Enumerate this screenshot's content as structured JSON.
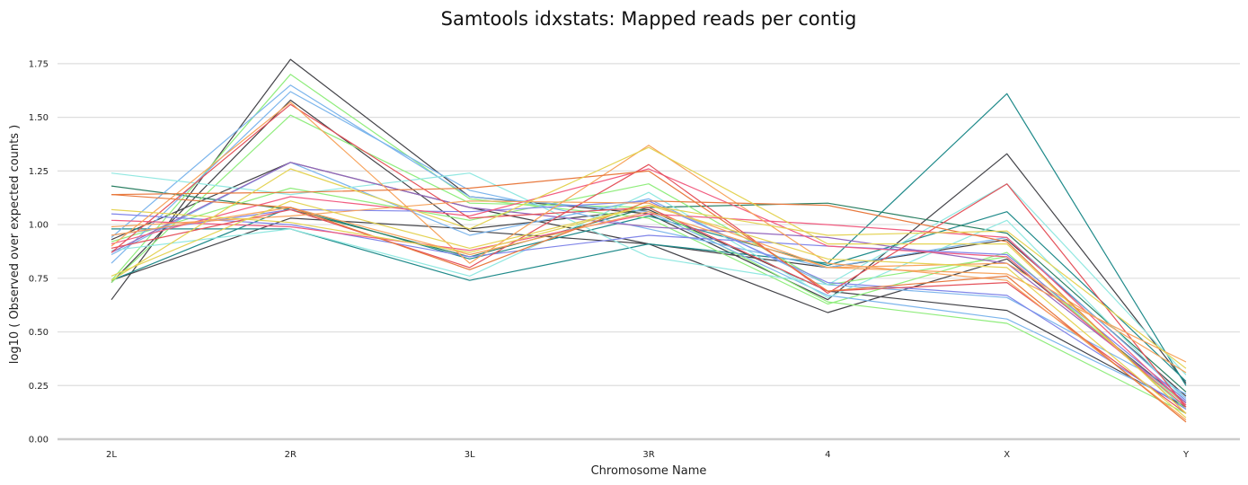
{
  "chart_data": {
    "type": "line",
    "title": "Samtools idxstats: Mapped reads per contig",
    "xlabel": "Chromosome Name",
    "ylabel": "log10 ( Observed over expected counts )",
    "categories": [
      "2L",
      "2R",
      "3L",
      "3R",
      "4",
      "X",
      "Y"
    ],
    "ylim": [
      0,
      1.85
    ],
    "yticks": [
      "0.00",
      "0.25",
      "0.50",
      "0.75",
      "1.00",
      "1.25",
      "1.50",
      "1.75"
    ],
    "grid": true,
    "series": [
      {
        "color": "#434348",
        "values": [
          0.65,
          1.77,
          1.13,
          1.05,
          0.65,
          1.33,
          0.26
        ]
      },
      {
        "color": "#434348",
        "values": [
          0.73,
          1.58,
          0.97,
          0.91,
          0.59,
          0.84,
          0.17
        ]
      },
      {
        "color": "#434348",
        "values": [
          0.74,
          1.03,
          0.98,
          1.07,
          0.69,
          0.6,
          0.15
        ]
      },
      {
        "color": "#434348",
        "values": [
          0.93,
          1.29,
          1.08,
          0.91,
          0.8,
          0.93,
          0.2
        ]
      },
      {
        "color": "#1f8a8a",
        "values": [
          0.98,
          0.98,
          0.74,
          0.91,
          0.82,
          1.61,
          0.25
        ]
      },
      {
        "color": "#1f8a8a",
        "values": [
          0.74,
          1.08,
          0.84,
          1.04,
          0.81,
          1.06,
          0.27
        ]
      },
      {
        "color": "#2a7f62",
        "values": [
          1.18,
          1.07,
          0.85,
          1.08,
          1.1,
          0.96,
          0.22
        ]
      },
      {
        "color": "#90ed7d",
        "values": [
          0.74,
          1.7,
          1.12,
          1.03,
          0.63,
          0.87,
          0.14
        ]
      },
      {
        "color": "#90ed7d",
        "values": [
          0.73,
          1.51,
          1.1,
          1.08,
          0.64,
          0.54,
          0.12
        ]
      },
      {
        "color": "#90ed7d",
        "values": [
          0.92,
          1.17,
          1.02,
          1.19,
          0.72,
          0.85,
          0.16
        ]
      },
      {
        "color": "#7cb5ec",
        "values": [
          0.94,
          1.65,
          1.13,
          1.06,
          0.67,
          0.56,
          0.16
        ]
      },
      {
        "color": "#7cb5ec",
        "values": [
          0.82,
          1.62,
          1.16,
          0.98,
          0.8,
          0.94,
          0.19
        ]
      },
      {
        "color": "#7cb5ec",
        "values": [
          0.86,
          1.29,
          0.95,
          1.12,
          0.72,
          0.66,
          0.21
        ]
      },
      {
        "color": "#91e8e1",
        "values": [
          1.24,
          1.14,
          1.24,
          0.85,
          0.72,
          1.19,
          0.3
        ]
      },
      {
        "color": "#91e8e1",
        "values": [
          0.88,
          0.98,
          0.76,
          1.15,
          0.66,
          1.02,
          0.18
        ]
      },
      {
        "color": "#8085e9",
        "values": [
          1.05,
          1.0,
          0.85,
          0.95,
          0.9,
          0.86,
          0.18
        ]
      },
      {
        "color": "#8085e9",
        "values": [
          0.95,
          1.07,
          1.06,
          1.11,
          0.73,
          0.67,
          0.14
        ]
      },
      {
        "color": "#9467bd",
        "values": [
          0.87,
          1.29,
          1.08,
          0.99,
          0.94,
          0.82,
          0.17
        ]
      },
      {
        "color": "#f15c80",
        "values": [
          0.91,
          1.13,
          1.04,
          1.26,
          0.9,
          0.85,
          0.15
        ]
      },
      {
        "color": "#f15c80",
        "values": [
          1.02,
          0.99,
          0.88,
          1.05,
          1.0,
          0.94,
          0.16
        ]
      },
      {
        "color": "#e4515a",
        "values": [
          0.89,
          1.07,
          0.8,
          1.28,
          0.68,
          1.19,
          0.15
        ]
      },
      {
        "color": "#e4515a",
        "values": [
          0.87,
          1.56,
          1.03,
          1.08,
          0.69,
          0.73,
          0.12
        ]
      },
      {
        "color": "#f7a35c",
        "values": [
          0.9,
          1.57,
          0.82,
          1.37,
          0.82,
          0.74,
          0.09
        ]
      },
      {
        "color": "#f7a35c",
        "values": [
          0.99,
          1.04,
          1.11,
          1.1,
          0.8,
          0.77,
          0.36
        ]
      },
      {
        "color": "#f7a35c",
        "values": [
          0.95,
          1.08,
          0.86,
          1.06,
          0.8,
          0.82,
          0.31
        ]
      },
      {
        "color": "#e8793e",
        "values": [
          1.14,
          1.15,
          1.17,
          1.25,
          0.69,
          0.76,
          0.08
        ]
      },
      {
        "color": "#e8793e",
        "values": [
          1.14,
          1.08,
          0.79,
          1.11,
          1.09,
          0.92,
          0.12
        ]
      },
      {
        "color": "#e4d354",
        "values": [
          0.74,
          1.26,
          0.98,
          1.36,
          0.91,
          0.91,
          0.12
        ]
      },
      {
        "color": "#e4d354",
        "values": [
          1.07,
          1.01,
          0.87,
          1.09,
          0.95,
          0.97,
          0.33
        ]
      },
      {
        "color": "#e4d354",
        "values": [
          0.76,
          1.11,
          0.89,
          1.09,
          0.84,
          0.8,
          0.1
        ]
      }
    ]
  }
}
